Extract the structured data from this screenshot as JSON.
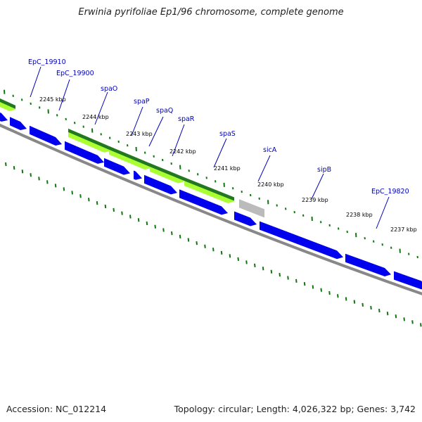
{
  "title": "Erwinia pyrifoliae Ep1/96 chromosome, complete genome",
  "footer": {
    "accession": "Accession: NC_012214",
    "summary": "Topology: circular; Length: 4,026,322 bp; Genes: 3,742"
  },
  "colors": {
    "backbone": "#888888",
    "cds": "#0000ee",
    "highlight_light": "#aaff33",
    "highlight_dark": "#227722",
    "grey_gene": "#bbbbbb",
    "tick": "#117711",
    "label": "#0000bb"
  },
  "gene_labels": [
    "EpC_19910",
    "EpC_19900",
    "spaO",
    "spaP",
    "spaQ",
    "spaR",
    "spaS",
    "sicA",
    "sipB",
    "EpC_19820"
  ],
  "kbp_labels": [
    "2245 kbp",
    "2244 kbp",
    "2243 kbp",
    "2242 kbp",
    "2241 kbp",
    "2240 kbp",
    "2239 kbp",
    "2238 kbp",
    "2237 kbp"
  ]
}
